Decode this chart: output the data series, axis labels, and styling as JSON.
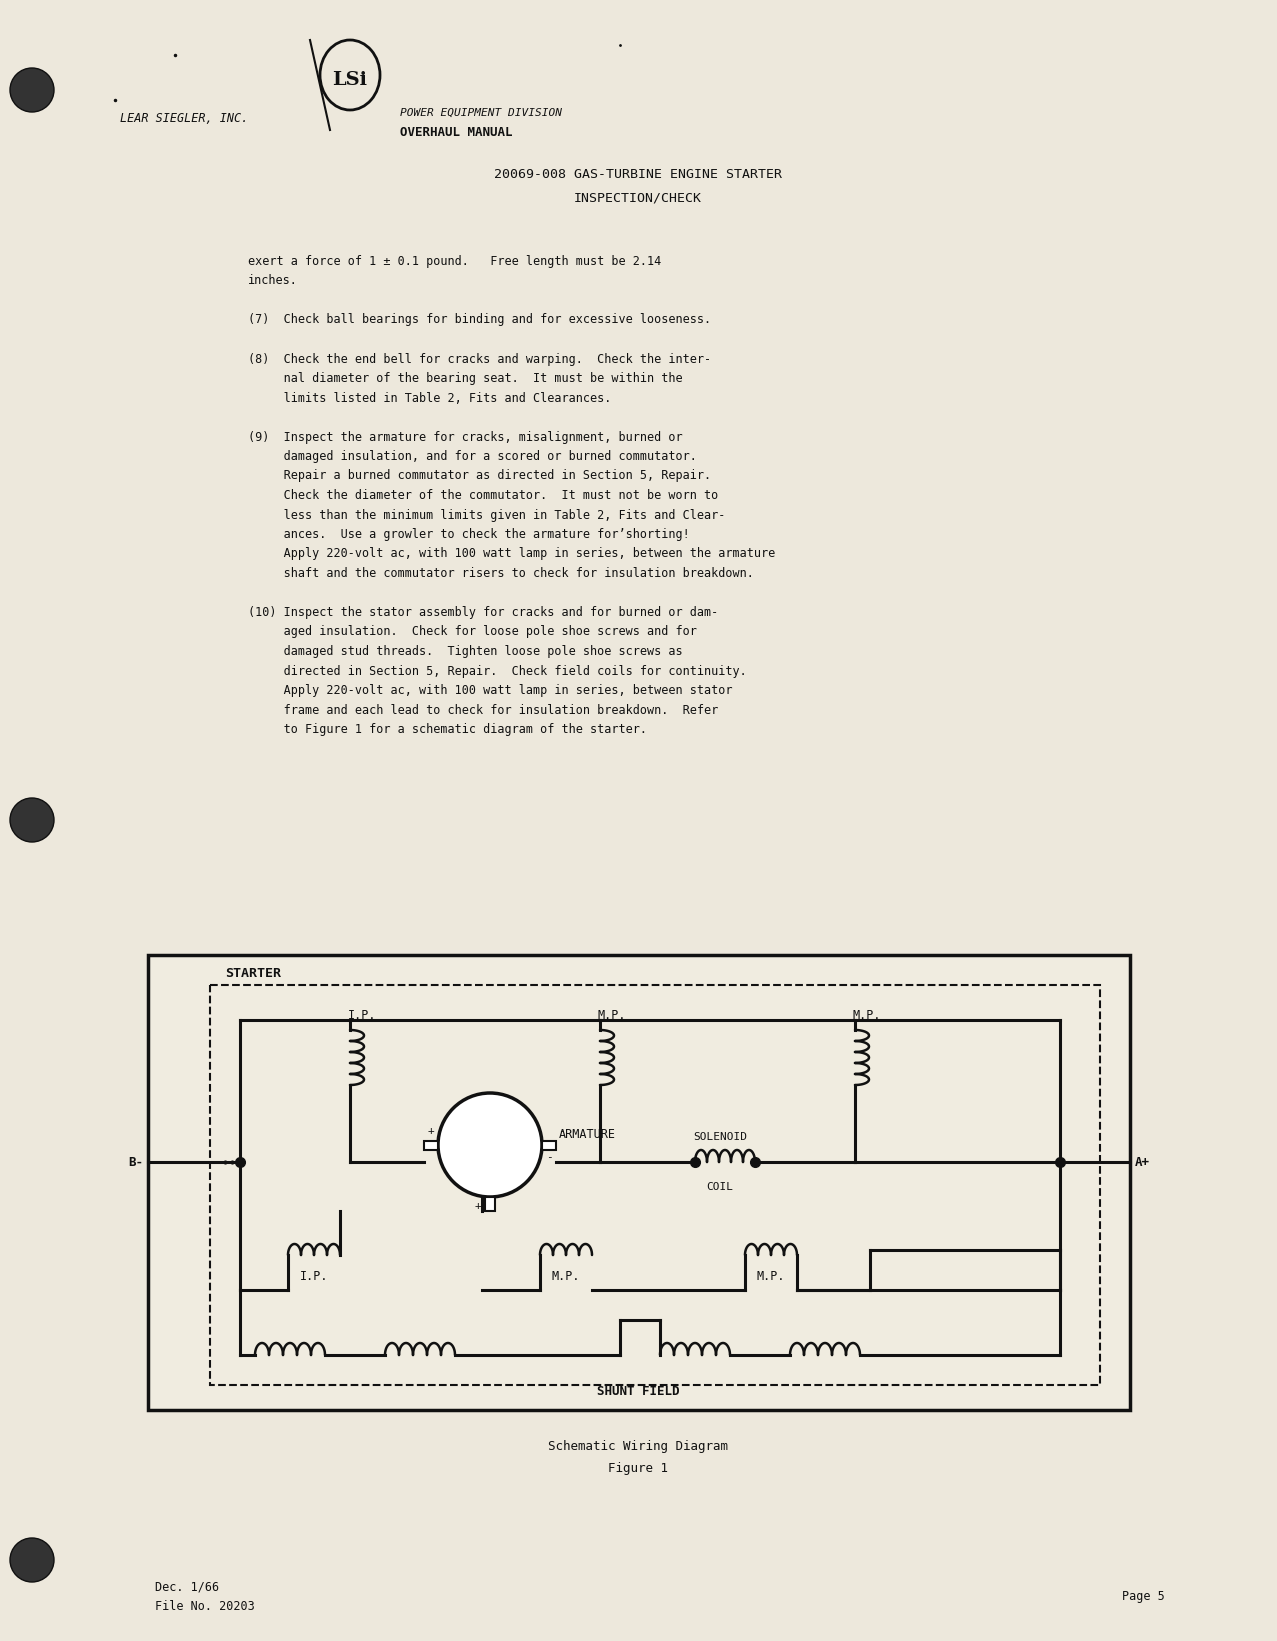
{
  "bg_color": "#ede8dc",
  "text_color": "#111111",
  "title_left": "LEAR SIEGLER, INC.",
  "title_right1": "POWER EQUIPMENT DIVISION",
  "title_right2": "OVERHAUL MANUAL",
  "doc_title1": "20069-008 GAS-TURBINE ENGINE STARTER",
  "doc_title2": "INSPECTION/CHECK",
  "fig_caption1": "Schematic Wiring Diagram",
  "fig_caption2": "Figure 1",
  "footer_left1": "Dec. 1/66",
  "footer_left2": "File No. 20203",
  "footer_right": "Page 5",
  "body_lines": [
    "exert a force of 1 ± 0.1 pound.   Free length must be 2.14",
    "inches.",
    "",
    "(7)  Check ball bearings for binding and for excessive looseness.",
    "",
    "(8)  Check the end bell for cracks and warping.  Check the inter-",
    "     nal diameter of the bearing seat.  It must be within the",
    "     limits listed in Table 2, Fits and Clearances.",
    "",
    "(9)  Inspect the armature for cracks, misalignment, burned or",
    "     damaged insulation, and for a scored or burned commutator.",
    "     Repair a burned commutator as directed in Section 5, Repair.",
    "     Check the diameter of the commutator.  It must not be worn to",
    "     less than the minimum limits given in Table 2, Fits and Clear-",
    "     ances.  Use a growler to check the armature for’shorting!",
    "     Apply 220-volt ac, with 100 watt lamp in series, between the armature",
    "     shaft and the commutator risers to check for insulation breakdown.",
    "",
    "(10) Inspect the stator assembly for cracks and for burned or dam-",
    "     aged insulation.  Check for loose pole shoe screws and for",
    "     damaged stud threads.  Tighten loose pole shoe screws as",
    "     directed in Section 5, Repair.  Check field coils for continuity.",
    "     Apply 220-volt ac, with 100 watt lamp in series, between stator",
    "     frame and each lead to check for insulation breakdown.  Refer",
    "     to Figure 1 for a schematic diagram of the starter."
  ]
}
